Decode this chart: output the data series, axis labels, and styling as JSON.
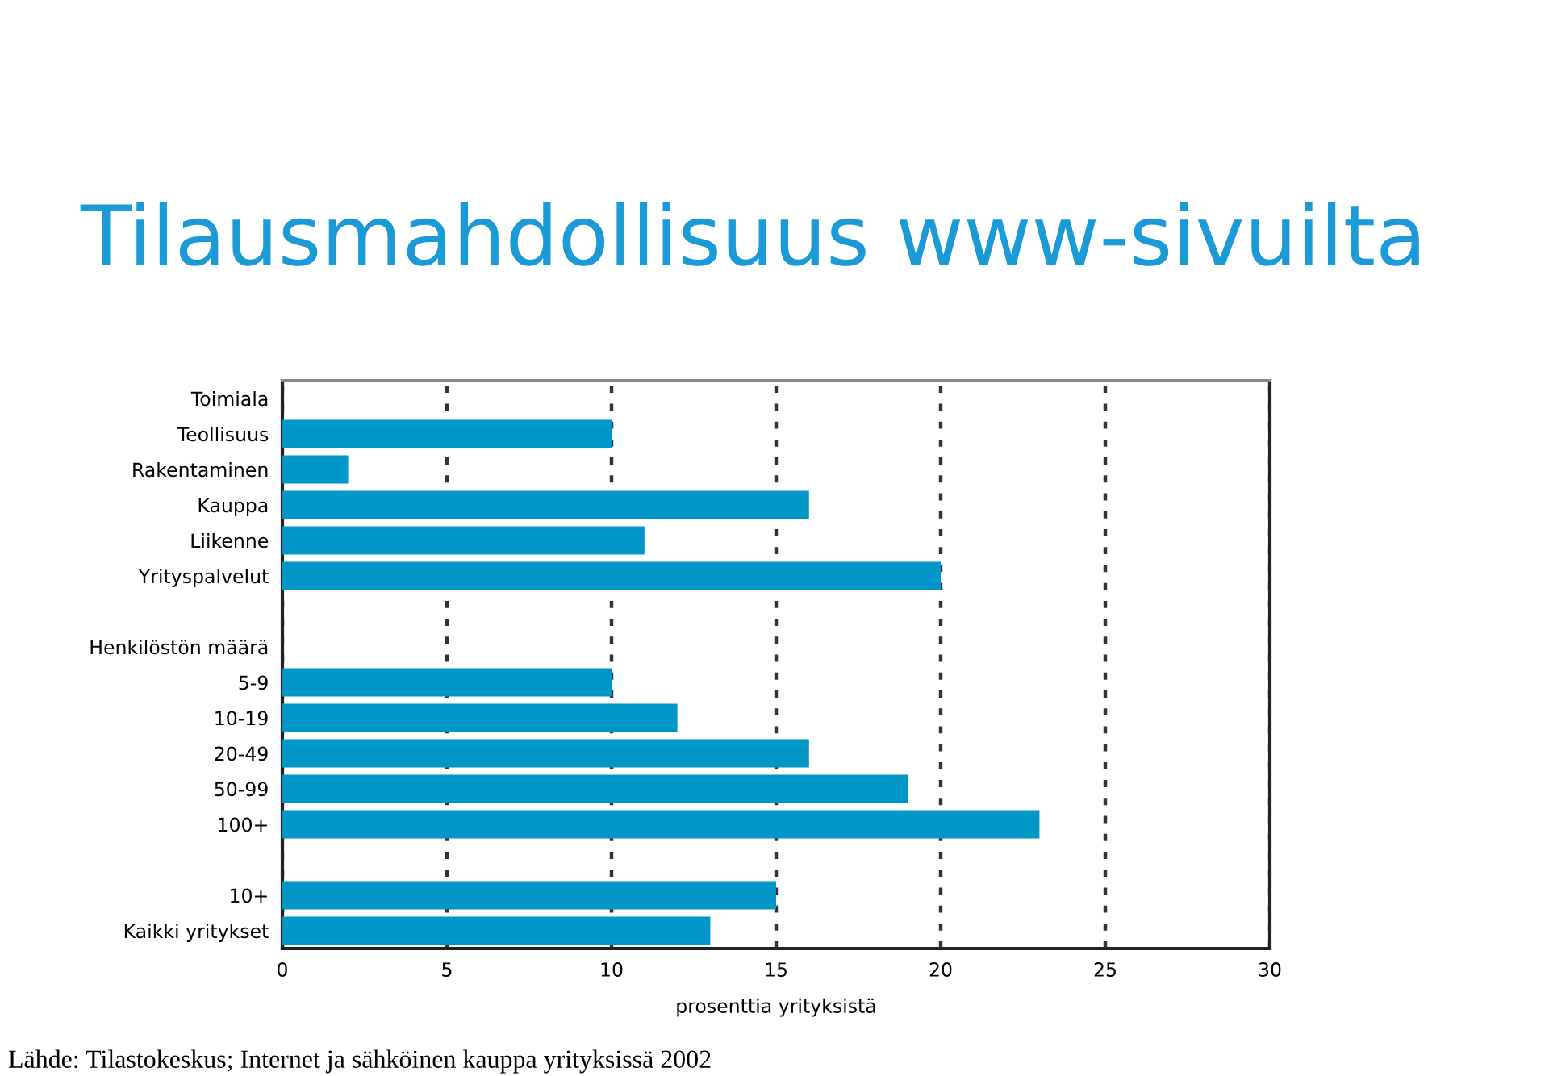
{
  "chart_data": {
    "type": "bar",
    "orientation": "horizontal",
    "title": "Tilausmahdollisuus www-sivuilta",
    "categories": [
      "Toimiala",
      "Teollisuus",
      "Rakentaminen",
      "Kauppa",
      "Liikenne",
      "Yrityspalvelut",
      null,
      "Henkilöstön määrä",
      "5-9",
      "10-19",
      "20-49",
      "50-99",
      "100+",
      null,
      "10+",
      "Kaikki yritykset"
    ],
    "values": [
      null,
      10,
      2,
      16,
      11,
      20,
      null,
      null,
      10,
      12,
      16,
      19,
      23,
      null,
      15,
      13
    ],
    "color": "#0096c8",
    "xlim": [
      0,
      30
    ],
    "xticks": [
      0,
      5,
      10,
      15,
      20,
      25,
      30
    ],
    "xlabel": "prosenttia yrityksistä",
    "grid": "x",
    "annotations": [
      "Lähde: Tilastokeskus; Internet ja sähköinen kauppa yrityksissä 2002"
    ]
  }
}
